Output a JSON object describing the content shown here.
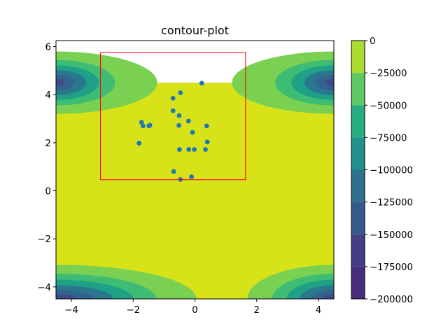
{
  "chart_data": {
    "type": "contour",
    "title": "contour-plot",
    "xlabel": "",
    "ylabel": "",
    "xlim": [
      -4.5,
      4.5
    ],
    "ylim": [
      -4.5,
      6.25
    ],
    "data_y_max": 4.5,
    "x_ticks": [
      -4,
      -2,
      0,
      2,
      4
    ],
    "x_tick_labels": [
      "−4",
      "−2",
      "0",
      "2",
      "4"
    ],
    "y_ticks": [
      -4,
      -2,
      0,
      2,
      4,
      6
    ],
    "y_tick_labels": [
      "−4",
      "−2",
      "0",
      "2",
      "4",
      "6"
    ],
    "colorbar": {
      "levels": [
        -200000,
        -175000,
        -150000,
        -125000,
        -100000,
        -75000,
        -50000,
        -25000,
        0
      ],
      "tick_labels": [
        "−200000",
        "−175000",
        "−150000",
        "−125000",
        "−100000",
        "−75000",
        "−50000",
        "−25000",
        "0"
      ],
      "colors": [
        "#472d7b",
        "#433e85",
        "#38598c",
        "#2c718e",
        "#21918c",
        "#27ad81",
        "#5ec962",
        "#aadc32",
        "#d8e219"
      ]
    },
    "corner_bands": {
      "top_left": [
        {
          "rx": 3.28,
          "ry": 1.3,
          "color": "#7ad151"
        },
        {
          "rx": 1.92,
          "ry": 0.95,
          "color": "#3fbc73"
        },
        {
          "rx": 1.4,
          "ry": 0.72,
          "color": "#1fa187"
        },
        {
          "rx": 0.98,
          "ry": 0.52,
          "color": "#2a788e"
        },
        {
          "rx": 0.6,
          "ry": 0.33,
          "color": "#33638d"
        },
        {
          "rx": 0.28,
          "ry": 0.16,
          "color": "#3e4a89"
        }
      ],
      "top_right": [
        {
          "rx": 3.3,
          "ry": 1.3,
          "color": "#7ad151"
        },
        {
          "rx": 1.9,
          "ry": 0.95,
          "color": "#3fbc73"
        },
        {
          "rx": 1.38,
          "ry": 0.72,
          "color": "#1fa187"
        },
        {
          "rx": 0.96,
          "ry": 0.52,
          "color": "#2a788e"
        },
        {
          "rx": 0.6,
          "ry": 0.33,
          "color": "#33638d"
        },
        {
          "rx": 0.28,
          "ry": 0.16,
          "color": "#3e4a89"
        }
      ],
      "bottom_left": [
        {
          "rx": 4.55,
          "ry": 1.42,
          "color": "#7ad151"
        },
        {
          "rx": 3.25,
          "ry": 1.05,
          "color": "#3fbc73"
        },
        {
          "rx": 2.5,
          "ry": 0.8,
          "color": "#1fa187"
        },
        {
          "rx": 1.85,
          "ry": 0.57,
          "color": "#2a788e"
        },
        {
          "rx": 1.25,
          "ry": 0.37,
          "color": "#33638d"
        },
        {
          "rx": 0.65,
          "ry": 0.19,
          "color": "#3e4a89"
        }
      ],
      "bottom_right": [
        {
          "rx": 2.8,
          "ry": 1.42,
          "color": "#7ad151"
        },
        {
          "rx": 2.0,
          "ry": 1.05,
          "color": "#3fbc73"
        },
        {
          "rx": 1.52,
          "ry": 0.8,
          "color": "#1fa187"
        },
        {
          "rx": 1.1,
          "ry": 0.57,
          "color": "#2a788e"
        },
        {
          "rx": 0.72,
          "ry": 0.37,
          "color": "#33638d"
        },
        {
          "rx": 0.38,
          "ry": 0.19,
          "color": "#3e4a89"
        }
      ]
    },
    "base_fill_color": "#d8e219",
    "scatter": {
      "color": "#1f77b4",
      "points": [
        {
          "x": 0.22,
          "y": 4.48
        },
        {
          "x": -0.47,
          "y": 4.08
        },
        {
          "x": -0.71,
          "y": 3.85
        },
        {
          "x": -0.71,
          "y": 3.33
        },
        {
          "x": -0.51,
          "y": 3.13
        },
        {
          "x": -0.21,
          "y": 2.9
        },
        {
          "x": -1.73,
          "y": 2.85
        },
        {
          "x": -1.68,
          "y": 2.7
        },
        {
          "x": -1.49,
          "y": 2.7
        },
        {
          "x": -1.46,
          "y": 2.73
        },
        {
          "x": -0.52,
          "y": 2.72
        },
        {
          "x": 0.38,
          "y": 2.7
        },
        {
          "x": -0.08,
          "y": 2.43
        },
        {
          "x": -1.81,
          "y": 1.98
        },
        {
          "x": 0.4,
          "y": 2.03
        },
        {
          "x": -0.5,
          "y": 1.72
        },
        {
          "x": -0.2,
          "y": 1.72
        },
        {
          "x": -0.02,
          "y": 1.72
        },
        {
          "x": 0.34,
          "y": 1.72
        },
        {
          "x": -0.69,
          "y": 0.8
        },
        {
          "x": -0.11,
          "y": 0.58
        },
        {
          "x": -0.47,
          "y": 0.47
        }
      ]
    },
    "rectangle": {
      "x0": -3.06,
      "y0": 0.46,
      "x1": 1.64,
      "y1": 5.75,
      "color": "#ff0000"
    }
  }
}
